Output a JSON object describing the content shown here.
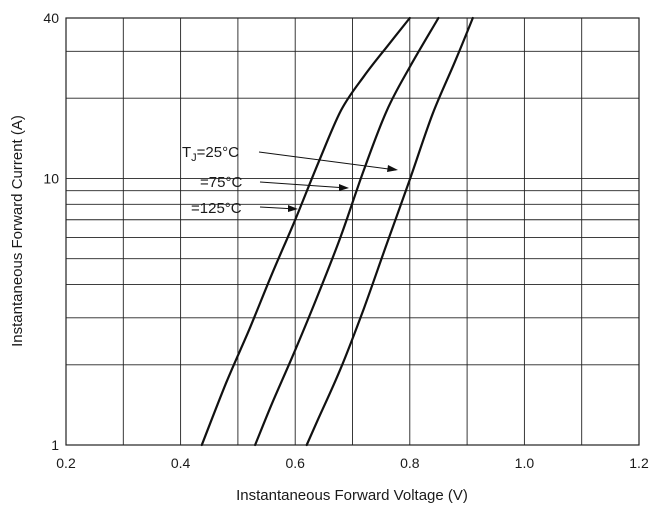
{
  "chart_data": {
    "type": "line",
    "xlabel": "Instantaneous Forward Voltage (V)",
    "ylabel": "Instantaneous Forward Current (A)",
    "xlim": [
      0.2,
      1.2
    ],
    "ylim": [
      1,
      40
    ],
    "y_scale": "log",
    "grid": true,
    "x_ticks": [
      "0.2",
      "0.4",
      "0.6",
      "0.8",
      "1.0",
      "1.2"
    ],
    "y_ticks": [
      "1",
      "10",
      "40"
    ],
    "series": [
      {
        "name": "TJ=25°C",
        "x": [
          0.437,
          0.48,
          0.52,
          0.56,
          0.6,
          0.64,
          0.68,
          0.72,
          0.76,
          0.8
        ],
        "y": [
          1.0,
          1.72,
          2.72,
          4.41,
          7.0,
          11.4,
          18.0,
          24.2,
          31.2,
          40.0
        ]
      },
      {
        "name": "TJ=75°C",
        "x": [
          0.53,
          0.56,
          0.6,
          0.64,
          0.68,
          0.72,
          0.76,
          0.8,
          0.85
        ],
        "y": [
          1.0,
          1.44,
          2.27,
          3.67,
          6.1,
          10.8,
          18.0,
          26.2,
          40.0
        ]
      },
      {
        "name": "TJ=125°C",
        "x": [
          0.62,
          0.64,
          0.68,
          0.72,
          0.76,
          0.8,
          0.84,
          0.88,
          0.91
        ],
        "y": [
          1.0,
          1.25,
          1.95,
          3.26,
          5.7,
          9.9,
          17.5,
          27.8,
          40.0
        ]
      }
    ],
    "annotations": {
      "tj_prefix": "T",
      "tj_sub": "J",
      "label_25": "=25°C",
      "label_75": "=75°C",
      "label_125": "=125°C"
    }
  }
}
